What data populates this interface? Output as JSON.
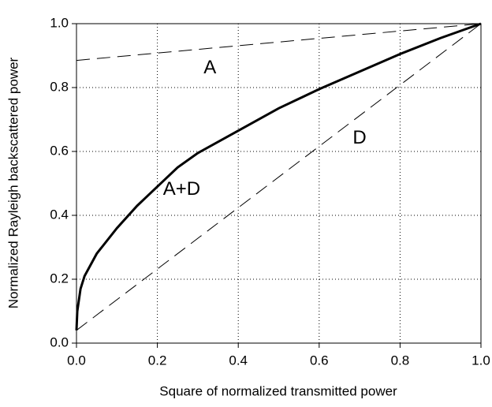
{
  "chart_data": {
    "type": "line",
    "xlabel": "Square of normalized transmitted power",
    "ylabel": "Normalized Rayleigh backscattered power",
    "xlim": [
      0,
      1
    ],
    "ylim": [
      0,
      1
    ],
    "xticks": [
      {
        "value": 0,
        "label": "0.0"
      },
      0.2,
      0.4,
      0.6,
      0.8,
      {
        "value": 1,
        "label": "1.0"
      }
    ],
    "yticks": [
      {
        "value": 0,
        "label": "0.0"
      },
      0.2,
      0.4,
      0.6,
      0.8,
      {
        "value": 1,
        "label": "1.0"
      }
    ],
    "grid": true,
    "series": [
      {
        "name": "A",
        "color": "#000000",
        "dashed": true,
        "x": [
          0,
          1
        ],
        "values": [
          0.885,
          1
        ]
      },
      {
        "name": "D",
        "color": "#000000",
        "dashed": true,
        "x": [
          0,
          1
        ],
        "values": [
          0.04,
          1
        ]
      },
      {
        "name": "A+D",
        "color": "#000000",
        "dashed": false,
        "x": [
          0,
          0.002,
          0.01,
          0.02,
          0.05,
          0.1,
          0.15,
          0.2,
          0.25,
          0.3,
          0.4,
          0.5,
          0.6,
          0.7,
          0.8,
          0.9,
          1
        ],
        "values": [
          0.04,
          0.1,
          0.17,
          0.21,
          0.28,
          0.36,
          0.43,
          0.49,
          0.55,
          0.595,
          0.665,
          0.735,
          0.795,
          0.85,
          0.905,
          0.955,
          1
        ]
      }
    ]
  }
}
